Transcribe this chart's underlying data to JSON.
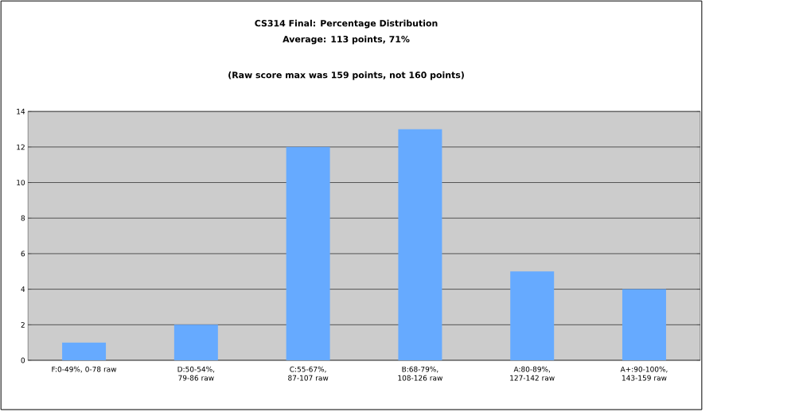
{
  "chart_data": {
    "type": "bar",
    "title": "CS314 Final: Percentage Distribution",
    "subtitle": "Average: 113 points, 71%",
    "annotations": [
      "(Raw score max was 159 points, not 160 points)"
    ],
    "categories": [
      "F:0-49%, 0-78 raw",
      "D:50-54%, 79-86 raw",
      "C:55-67%, 87-107 raw",
      "B:68-79%, 108-126 raw",
      "A:80-89%, 127-142 raw",
      "A+:90-100%, 143-159 raw"
    ],
    "values": [
      1,
      2,
      12,
      13,
      5,
      4
    ],
    "color": "#66aaff",
    "ylim": [
      0,
      14
    ],
    "yticks": [
      0,
      2,
      4,
      6,
      8,
      10,
      12,
      14
    ],
    "grid": "y"
  }
}
